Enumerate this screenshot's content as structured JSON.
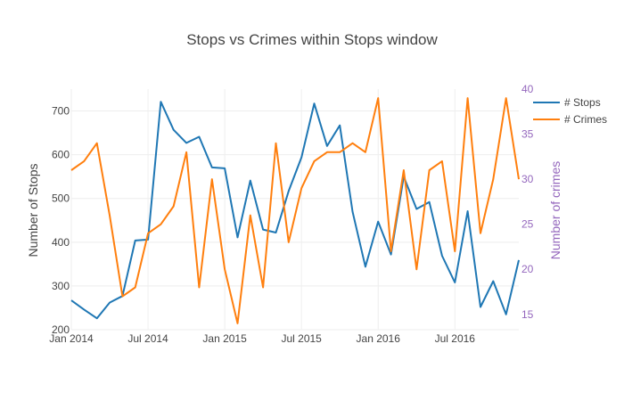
{
  "chart_data": {
    "type": "line",
    "title": "Stops vs Crimes within Stops window",
    "xlabel": "",
    "ylabel": "Number of Stops",
    "y2label": "Number of crimes",
    "x": [
      "2014-01",
      "2014-02",
      "2014-03",
      "2014-04",
      "2014-05",
      "2014-06",
      "2014-07",
      "2014-08",
      "2014-09",
      "2014-10",
      "2014-11",
      "2014-12",
      "2015-01",
      "2015-02",
      "2015-03",
      "2015-04",
      "2015-05",
      "2015-06",
      "2015-07",
      "2015-08",
      "2015-09",
      "2015-10",
      "2015-11",
      "2015-12",
      "2016-01",
      "2016-02",
      "2016-03",
      "2016-04",
      "2016-05",
      "2016-06",
      "2016-07",
      "2016-08",
      "2016-09",
      "2016-10",
      "2016-11",
      "2016-12"
    ],
    "x_tick_labels": [
      "Jan 2014",
      "Jul 2014",
      "Jan 2015",
      "Jul 2015",
      "Jan 2016",
      "Jul 2016"
    ],
    "x_tick_index": [
      0,
      6,
      12,
      18,
      24,
      30
    ],
    "ylim": [
      200,
      750
    ],
    "y_ticks": [
      200,
      300,
      400,
      500,
      600,
      700
    ],
    "y2lim": [
      13.3,
      40
    ],
    "y2_ticks": [
      15,
      20,
      25,
      30,
      35,
      40
    ],
    "legend_position": "top-right",
    "series": [
      {
        "name": "# Stops",
        "axis": "y",
        "color": "#1f77b4",
        "values": [
          267,
          246,
          226,
          262,
          277,
          404,
          406,
          721,
          657,
          627,
          641,
          571,
          569,
          411,
          541,
          429,
          422,
          517,
          594,
          717,
          620,
          667,
          470,
          344,
          447,
          372,
          550,
          476,
          492,
          369,
          308,
          471,
          252,
          311,
          235,
          359
        ]
      },
      {
        "name": "# Crimes",
        "axis": "y2",
        "color": "#ff7f0e",
        "values": [
          31,
          32,
          34,
          26,
          17,
          18,
          24,
          25,
          27,
          33,
          18,
          30,
          20,
          14,
          26,
          18,
          34,
          23,
          29,
          32,
          33,
          33,
          34,
          33,
          39,
          22,
          31,
          20,
          31,
          32,
          22,
          39,
          24,
          30,
          39,
          30
        ]
      }
    ]
  }
}
